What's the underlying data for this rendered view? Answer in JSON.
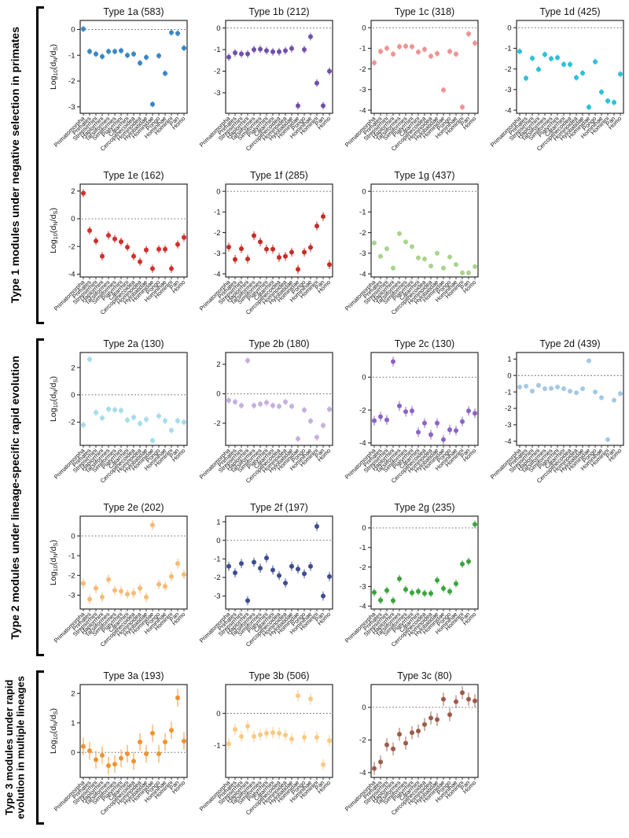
{
  "figure": {
    "ylabel_parts": [
      [
        "n",
        "Log"
      ],
      [
        "sub",
        "10"
      ],
      [
        "n",
        "(d"
      ],
      [
        "sub",
        "N"
      ],
      [
        "n",
        "/d"
      ],
      [
        "sub",
        "S"
      ],
      [
        "n",
        ")"
      ]
    ],
    "taxa": [
      "Primatomorpha",
      "Primates",
      "Strepsirrhini",
      "Haplorrhini",
      "Tarsiiformes",
      "Simiiformes",
      "Platyrrhini",
      "Catarrhini",
      "Cercopithecoidea",
      "Hominoidea",
      "Hylobatidae",
      "Hominidae",
      "Pongo",
      "Homininae",
      "Hominini",
      "Pan",
      "Homo"
    ],
    "axis_color": "#2a2a2a"
  },
  "sections": [
    {
      "label": "Type 1 modules under negative selection in primates",
      "charts": [
        "type-1a",
        "type-1b",
        "type-1c",
        "type-1d",
        "type-1e",
        "type-1f",
        "type-1g"
      ]
    },
    {
      "label": "Type 2 modules under lineage-specific rapid evolution",
      "charts": [
        "type-2a",
        "type-2b",
        "type-2c",
        "type-2d",
        "type-2e",
        "type-2f",
        "type-2g"
      ]
    },
    {
      "label": "Type 3 modules under rapid\nevolution in multiple lineages",
      "charts": [
        "type-3a",
        "type-3b",
        "type-3c"
      ]
    }
  ],
  "chart_data": [
    {
      "id": "type-1a",
      "type": "scatter",
      "title": "Type 1a (583)",
      "module": "Type 1a",
      "count": 583,
      "color": "#3a87c5",
      "ylim": [
        -3.25,
        0.35
      ],
      "yticks": [
        0,
        -1,
        -2,
        -3
      ],
      "err": 0.12,
      "values": [
        0.02,
        -0.85,
        -0.95,
        -1.05,
        -0.85,
        -0.85,
        -0.82,
        -1.0,
        -0.95,
        -1.3,
        -1.08,
        -2.9,
        -1.02,
        -1.7,
        -0.12,
        -0.15,
        -0.72
      ]
    },
    {
      "id": "type-1b",
      "type": "scatter",
      "title": "Type 1b (212)",
      "module": "Type 1b",
      "count": 212,
      "color": "#7050a8",
      "ylim": [
        -3.95,
        0.35
      ],
      "yticks": [
        0,
        -1,
        -2,
        -3
      ],
      "err": 0.18,
      "values": [
        -1.35,
        -1.15,
        -1.2,
        -1.2,
        -1.0,
        -0.98,
        -1.05,
        -1.1,
        -1.1,
        -1.05,
        -0.95,
        -3.6,
        -1.0,
        -0.4,
        -2.55,
        -3.6,
        -2.0
      ]
    },
    {
      "id": "type-1c",
      "type": "scatter",
      "title": "Type 1c (318)",
      "module": "Type 1c",
      "count": 318,
      "color": "#f09393",
      "ylim": [
        -4.15,
        0.35
      ],
      "yticks": [
        0,
        -1,
        -2,
        -3,
        -4
      ],
      "err": 0.15,
      "values": [
        -1.7,
        -1.15,
        -1.0,
        -1.28,
        -0.92,
        -0.9,
        -0.92,
        -1.18,
        -1.05,
        -1.38,
        -1.25,
        -3.02,
        -1.15,
        -1.28,
        -3.85,
        -0.3,
        -0.75
      ]
    },
    {
      "id": "type-1d",
      "type": "scatter",
      "title": "Type 1d (425)",
      "module": "Type 1d",
      "count": 425,
      "color": "#2ec0d8",
      "ylim": [
        -4.15,
        0.35
      ],
      "yticks": [
        0,
        -1,
        -2,
        -3,
        -4
      ],
      "err": 0.15,
      "values": [
        -1.15,
        -2.45,
        -1.48,
        -2.02,
        -1.3,
        -1.5,
        -1.45,
        -1.78,
        -1.78,
        -2.42,
        -2.2,
        -3.85,
        -1.65,
        -3.12,
        -3.55,
        -3.62,
        -2.25
      ]
    },
    {
      "id": "type-1e",
      "type": "scatter",
      "title": "Type 1e (162)",
      "module": "Type 1e",
      "count": 162,
      "color": "#d32f2c",
      "ylim": [
        -4.2,
        2.5
      ],
      "yticks": [
        2,
        0,
        -2,
        -4
      ],
      "err": 0.3,
      "values": [
        1.85,
        -0.85,
        -1.6,
        -2.7,
        -1.2,
        -1.45,
        -1.65,
        -2.05,
        -2.7,
        -3.1,
        -2.25,
        -3.6,
        -2.2,
        -2.2,
        -3.6,
        -1.85,
        -1.35
      ]
    },
    {
      "id": "type-1f",
      "type": "scatter",
      "title": "Type 1f (285)",
      "module": "Type 1f",
      "count": 285,
      "color": "#c62d26",
      "ylim": [
        -4.15,
        0.35
      ],
      "yticks": [
        0,
        -1,
        -2,
        -3,
        -4
      ],
      "err": 0.22,
      "values": [
        -2.7,
        -3.3,
        -2.78,
        -3.28,
        -2.15,
        -2.45,
        -2.8,
        -2.8,
        -3.2,
        -3.15,
        -2.95,
        -3.78,
        -2.95,
        -2.72,
        -1.68,
        -1.22,
        -3.55
      ]
    },
    {
      "id": "type-1g",
      "type": "scatter",
      "title": "Type 1g (437)",
      "module": "Type 1g",
      "count": 437,
      "color": "#a9d48b",
      "ylim": [
        -4.15,
        0.35
      ],
      "yticks": [
        0,
        -1,
        -2,
        -3,
        -4
      ],
      "err": 0.12,
      "values": [
        -2.5,
        -3.15,
        -2.78,
        -3.72,
        -2.05,
        -2.45,
        -2.68,
        -3.22,
        -3.28,
        -3.62,
        -3.0,
        -3.72,
        -3.18,
        -3.55,
        -3.95,
        -3.95,
        -3.65
      ]
    },
    {
      "id": "type-2a",
      "type": "scatter",
      "title": "Type 2a (130)",
      "module": "Type 2a",
      "count": 130,
      "color": "#a6dde9",
      "ylim": [
        -3.7,
        3.1
      ],
      "yticks": [
        2,
        0,
        -2
      ],
      "err": 0.25,
      "values": [
        -2.2,
        2.6,
        -1.3,
        -1.7,
        -1.05,
        -1.1,
        -1.15,
        -1.85,
        -1.65,
        -2.1,
        -1.8,
        -3.35,
        -1.55,
        -1.9,
        -2.6,
        -1.9,
        -2.0
      ]
    },
    {
      "id": "type-2b",
      "type": "scatter",
      "title": "Type 2b (180)",
      "module": "Type 2b",
      "count": 180,
      "color": "#c5b0dd",
      "ylim": [
        -3.5,
        2.8
      ],
      "yticks": [
        2,
        0,
        -2
      ],
      "err": 0.22,
      "values": [
        -0.45,
        -0.55,
        -0.8,
        2.25,
        -0.8,
        -0.7,
        -0.6,
        -0.8,
        -0.85,
        -0.55,
        -0.85,
        -3.05,
        -1.1,
        -1.85,
        -2.95,
        -2.15,
        -1.05
      ]
    },
    {
      "id": "type-2c",
      "type": "scatter",
      "title": "Type 2c (130)",
      "module": "Type 2c",
      "count": 130,
      "color": "#8b63c6",
      "ylim": [
        -4.15,
        1.5
      ],
      "yticks": [
        0,
        -2,
        -4
      ],
      "err": 0.3,
      "values": [
        -2.65,
        -2.4,
        -2.6,
        0.95,
        -1.75,
        -2.1,
        -2.05,
        -3.35,
        -2.8,
        -3.5,
        -2.8,
        -3.8,
        -3.2,
        -3.25,
        -2.7,
        -2.05,
        -2.2
      ]
    },
    {
      "id": "type-2d",
      "type": "scatter",
      "title": "Type 2d (439)",
      "module": "Type 2d",
      "count": 439,
      "color": "#a5c9e4",
      "ylim": [
        -4.25,
        1.4
      ],
      "yticks": [
        1,
        0,
        -1,
        -2,
        -3,
        -4
      ],
      "err": 0.15,
      "values": [
        -0.7,
        -0.65,
        -0.95,
        -0.6,
        -0.8,
        -0.78,
        -0.7,
        -0.8,
        -0.95,
        -1.05,
        -0.8,
        0.9,
        -1.0,
        -1.35,
        -3.9,
        -1.5,
        -1.1
      ]
    },
    {
      "id": "type-2e",
      "type": "scatter",
      "title": "Type 2e (202)",
      "module": "Type 2e",
      "count": 202,
      "color": "#f6ba74",
      "ylim": [
        -3.7,
        1.0
      ],
      "yticks": [
        0,
        -1,
        -2,
        -3
      ],
      "err": 0.25,
      "values": [
        -2.4,
        -3.2,
        -2.65,
        -3.1,
        -2.2,
        -2.75,
        -2.8,
        -2.95,
        -2.9,
        -2.65,
        -3.1,
        0.55,
        -2.45,
        -2.55,
        -2.05,
        -1.4,
        -1.95
      ]
    },
    {
      "id": "type-2f",
      "type": "scatter",
      "title": "Type 2f (197)",
      "module": "Type 2f",
      "count": 197,
      "color": "#3e4d90",
      "ylim": [
        -3.7,
        1.3
      ],
      "yticks": [
        1,
        0,
        -1,
        -2,
        -3
      ],
      "err": 0.25,
      "values": [
        -1.4,
        -1.75,
        -1.25,
        -3.25,
        -1.18,
        -1.5,
        -0.95,
        -1.6,
        -1.9,
        -2.3,
        -1.4,
        -1.55,
        -1.8,
        -1.4,
        0.75,
        -3.0,
        -1.95
      ]
    },
    {
      "id": "type-2g",
      "type": "scatter",
      "title": "Type 2g (235)",
      "module": "Type 2g",
      "count": 235,
      "color": "#3aa53c",
      "ylim": [
        -4.15,
        0.6
      ],
      "yticks": [
        0,
        -1,
        -2,
        -3,
        -4
      ],
      "err": 0.2,
      "values": [
        -3.3,
        -3.7,
        -3.2,
        -3.72,
        -2.6,
        -3.15,
        -3.32,
        -3.25,
        -3.35,
        -3.35,
        -2.68,
        -3.1,
        -3.25,
        -2.85,
        -1.85,
        -1.72,
        0.18
      ]
    },
    {
      "id": "type-3a",
      "type": "scatter",
      "title": "Type 3a (193)",
      "module": "Type 3a",
      "count": 193,
      "color": "#f0922d",
      "ylim": [
        -0.85,
        2.3
      ],
      "yticks": [
        2,
        1,
        0
      ],
      "err": 0.3,
      "values": [
        0.2,
        0.05,
        -0.25,
        -0.1,
        -0.45,
        -0.4,
        -0.2,
        -0.05,
        -0.3,
        0.35,
        -0.05,
        0.65,
        -0.05,
        0.35,
        0.75,
        1.85,
        0.38
      ]
    },
    {
      "id": "type-3b",
      "type": "scatter",
      "title": "Type 3b (506)",
      "module": "Type 3b",
      "count": 506,
      "color": "#fac981",
      "ylim": [
        -2.0,
        0.9
      ],
      "yticks": [
        0,
        -1
      ],
      "err": 0.18,
      "values": [
        -0.95,
        -0.5,
        -0.72,
        -0.4,
        -0.72,
        -0.67,
        -0.62,
        -0.6,
        -0.62,
        -0.68,
        -0.8,
        0.55,
        -0.75,
        0.45,
        -0.75,
        -1.6,
        -0.85
      ]
    },
    {
      "id": "type-3c",
      "type": "scatter",
      "title": "Type 3c (80)",
      "module": "Type 3c",
      "count": 80,
      "color": "#9e5b49",
      "ylim": [
        -4.3,
        1.4
      ],
      "yticks": [
        0,
        -2,
        -4
      ],
      "err": 0.4,
      "values": [
        -3.75,
        -3.35,
        -2.3,
        -2.55,
        -1.65,
        -2.2,
        -1.55,
        -1.45,
        -1.05,
        -0.65,
        -0.75,
        0.5,
        -0.45,
        0.35,
        0.9,
        0.5,
        0.4
      ]
    }
  ]
}
